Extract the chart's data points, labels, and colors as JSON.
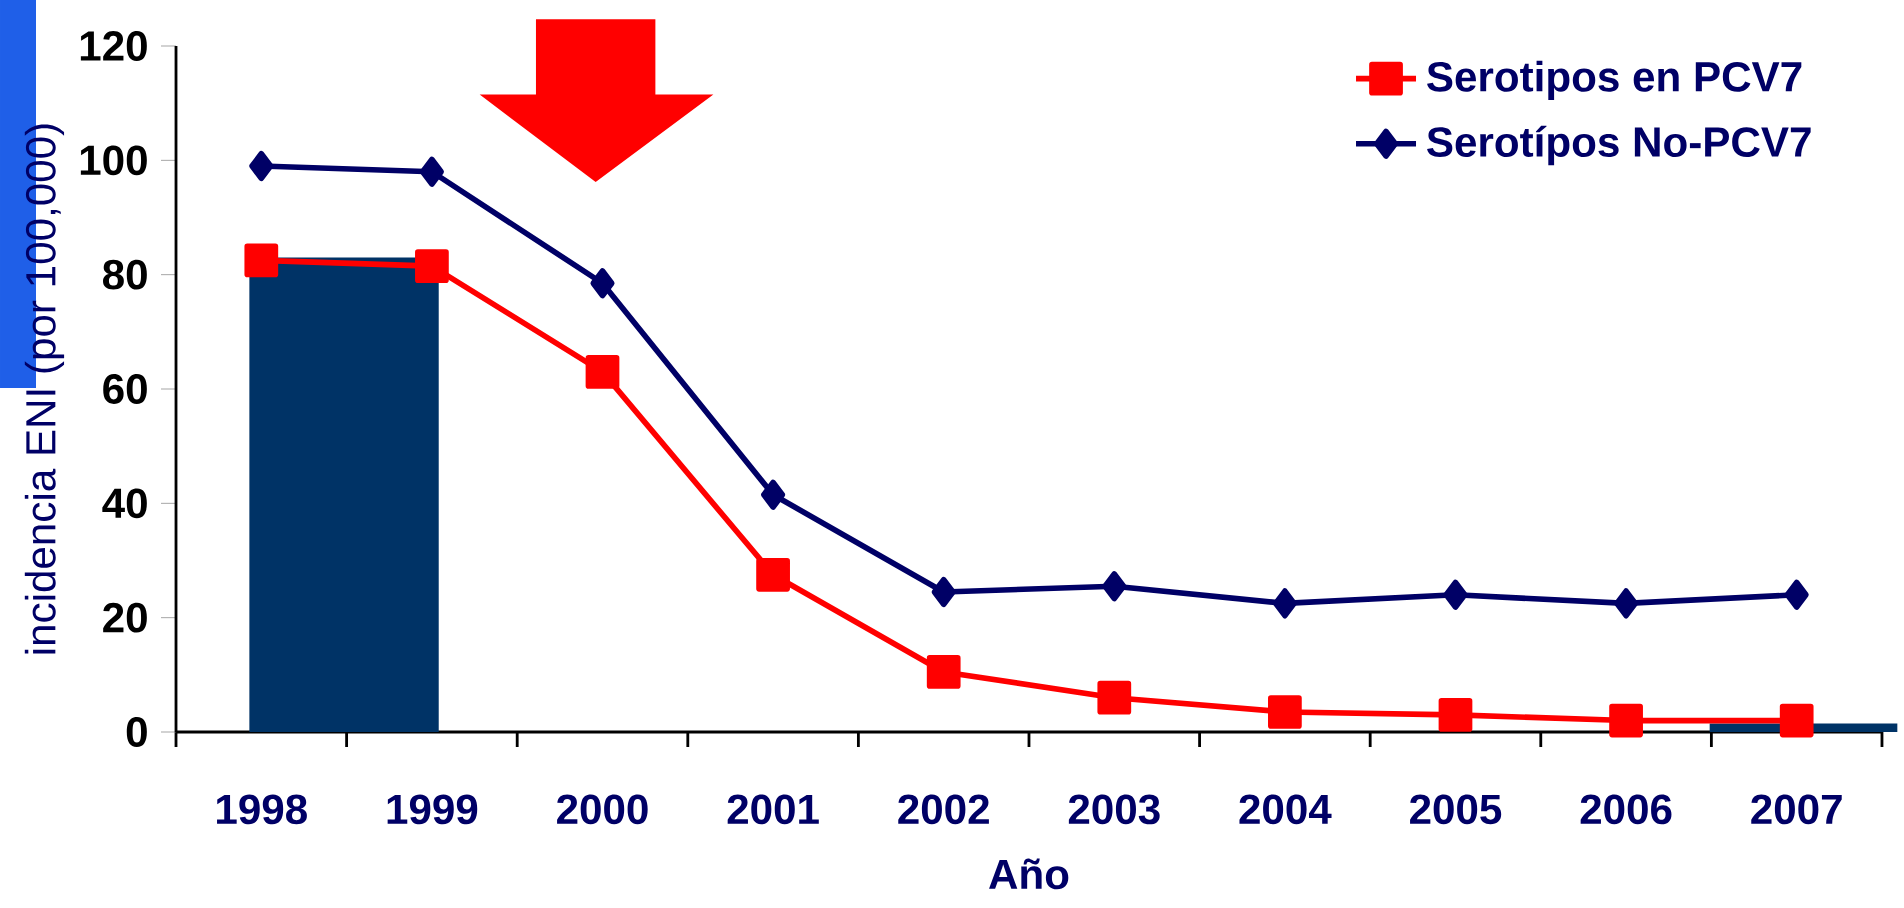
{
  "chart_data": {
    "type": "line",
    "xlabel": "Año",
    "ylabel": "incidencia ENI  (por 100,000)",
    "categories": [
      "1998",
      "1999",
      "2000",
      "2001",
      "2002",
      "2003",
      "2004",
      "2005",
      "2006",
      "2007"
    ],
    "series": [
      {
        "name": "Serotipos en PCV7",
        "color": "#ff0000",
        "marker": "square",
        "values": [
          82.5,
          81.5,
          63,
          27.5,
          10.5,
          6,
          3.5,
          3,
          2,
          2
        ]
      },
      {
        "name": "Serotípos No-PCV7",
        "color": "#000066",
        "marker": "diamond",
        "values": [
          99,
          98,
          78.5,
          41.5,
          24.5,
          25.5,
          22.5,
          24,
          22.5,
          24
        ]
      }
    ],
    "ylim": [
      0,
      120
    ],
    "yticks": [
      0,
      20,
      40,
      60,
      80,
      100,
      120
    ],
    "legend": "top right",
    "grid": false
  }
}
